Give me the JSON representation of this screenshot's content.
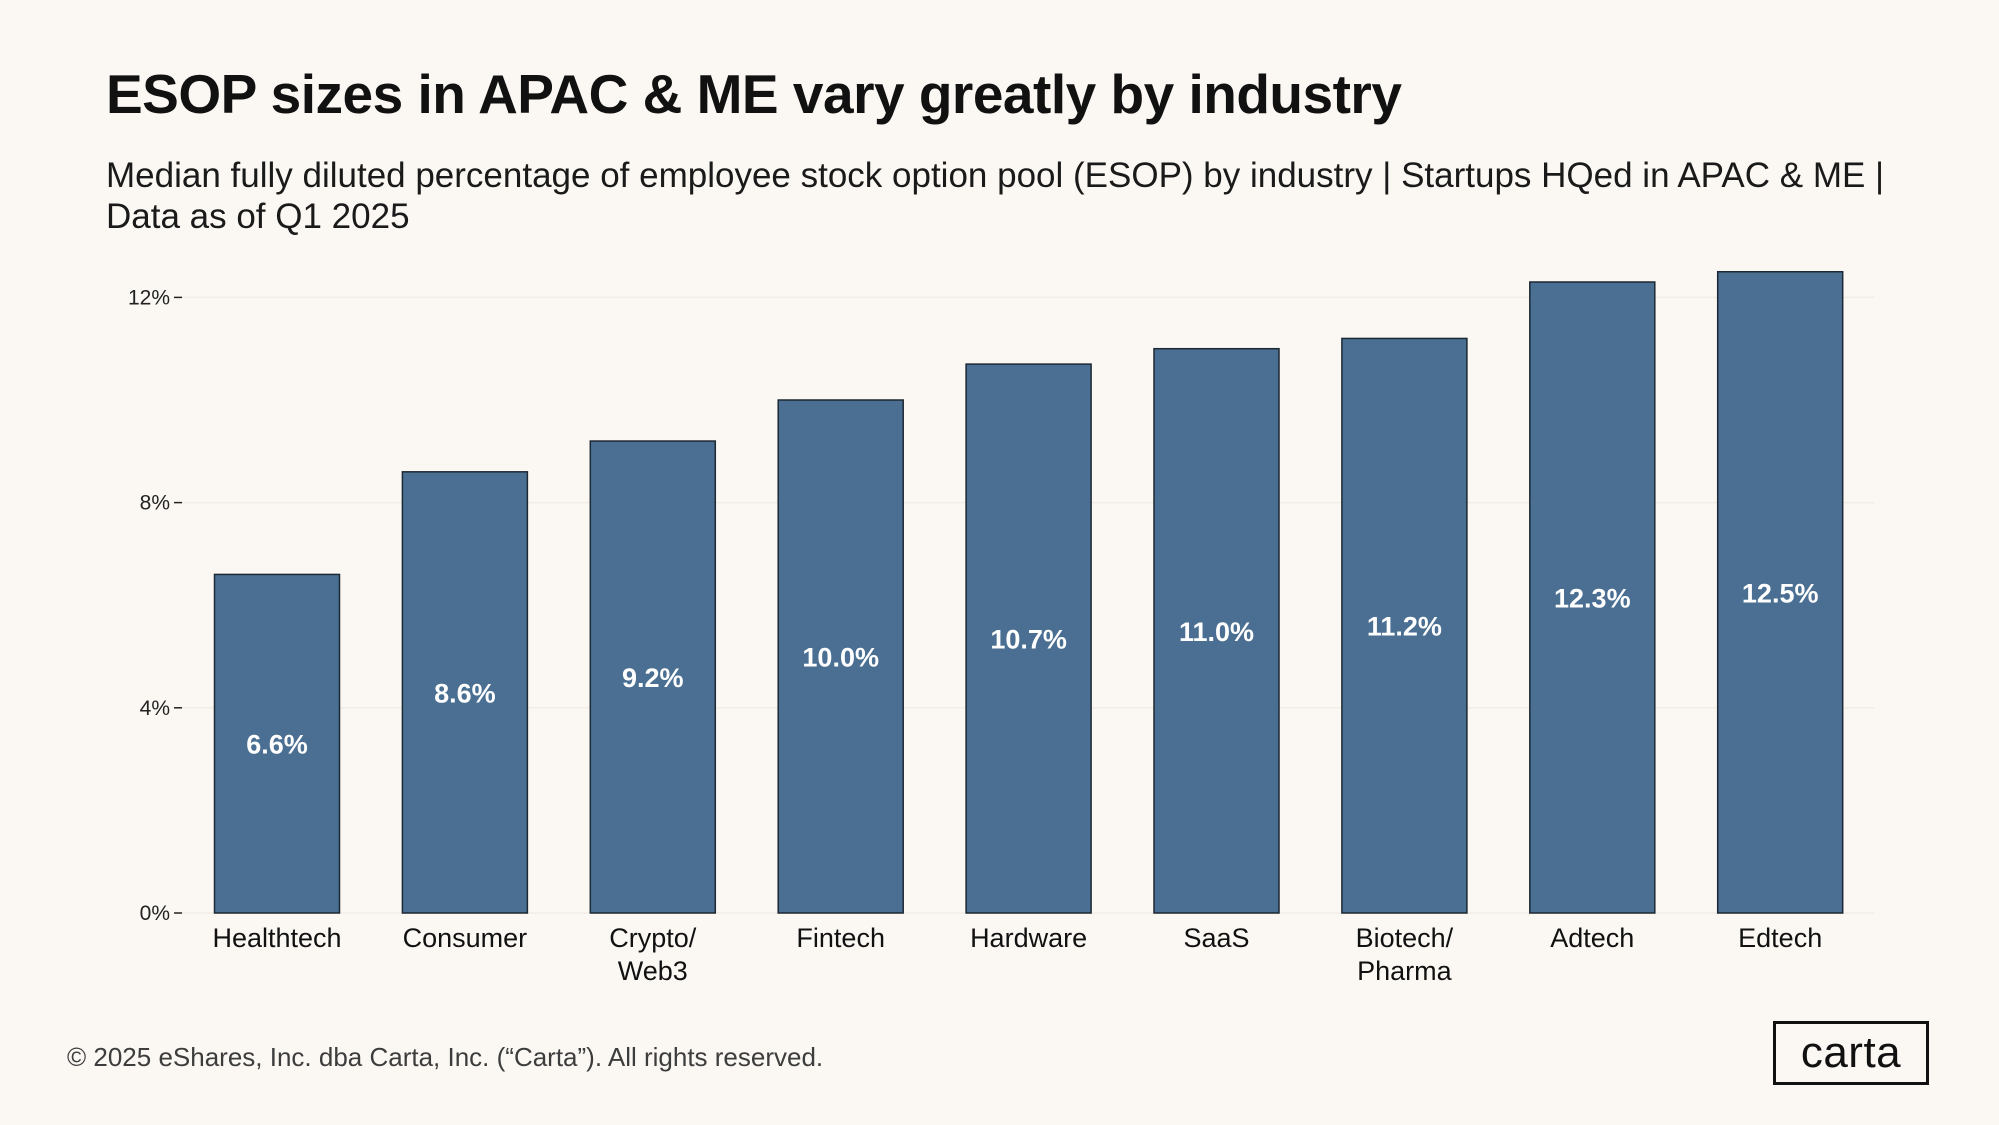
{
  "title": "ESOP sizes in APAC & ME vary greatly by industry",
  "subtitle": "Median fully diluted percentage of employee stock option pool (ESOP) by industry | Startups HQed in APAC & ME | Data as of Q1 2025",
  "footer": "© 2025 eShares, Inc. dba Carta, Inc. (“Carta”). All rights reserved.",
  "logo": "carta",
  "colors": {
    "bar": "#4a6f92",
    "bar_outline": "#1c2833",
    "background": "#fbf8f3",
    "gridline": "#f1ece4"
  },
  "chart_data": {
    "type": "bar",
    "categories": [
      [
        "Healthtech"
      ],
      [
        "Consumer"
      ],
      [
        "Crypto/",
        "Web3"
      ],
      [
        "Fintech"
      ],
      [
        "Hardware"
      ],
      [
        "SaaS"
      ],
      [
        "Biotech/",
        "Pharma"
      ],
      [
        "Adtech"
      ],
      [
        "Edtech"
      ]
    ],
    "values": [
      6.6,
      8.6,
      9.2,
      10.0,
      10.7,
      11.0,
      11.2,
      12.3,
      12.5
    ],
    "data_labels": [
      "6.6%",
      "8.6%",
      "9.2%",
      "10.0%",
      "10.7%",
      "11.0%",
      "11.2%",
      "12.3%",
      "12.5%"
    ],
    "yticks": [
      0,
      4,
      8,
      12
    ],
    "ytick_labels": [
      "0%",
      "4%",
      "8%",
      "12%"
    ],
    "ylim": [
      0,
      12.5
    ],
    "xlabel": "",
    "ylabel": "",
    "grid": true,
    "legend": "none"
  }
}
